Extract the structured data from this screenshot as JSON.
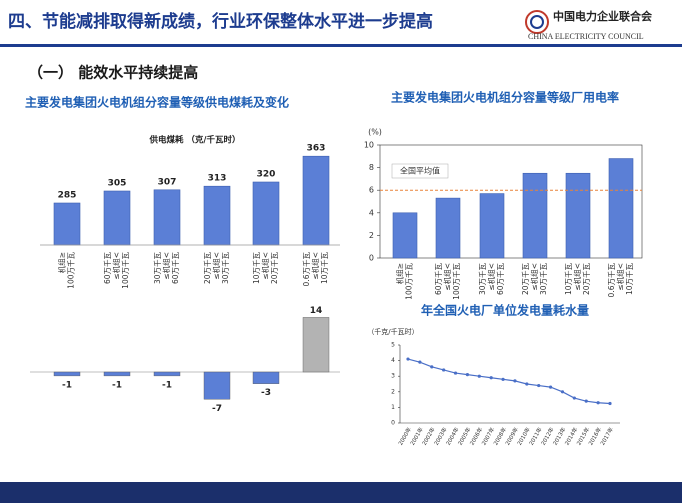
{
  "header": {
    "title": "四、节能减排取得新成绩，行业环保整体水平进一步提高",
    "org": "中国电力企业联合会",
    "org_en": "CHINA ELECTRICITY COUNCIL"
  },
  "section": "（一） 能效水平持续提高",
  "chart_data": [
    {
      "type": "bar",
      "title": "主要发电集团火电机组分容量等级供电煤耗及变化",
      "subtitle": "供电煤耗 （克/千瓦时）",
      "categories": [
        [
          "机组≥",
          "100万千瓦"
        ],
        [
          "60万千瓦",
          "≤机组<",
          "100万千瓦"
        ],
        [
          "30万千瓦",
          "≤机组<",
          "60万千瓦"
        ],
        [
          "20万千瓦",
          "≤机组<",
          "30万千瓦"
        ],
        [
          "10万千瓦",
          "≤机组<",
          "20万千瓦"
        ],
        [
          "0.6万千瓦",
          "≤机组<",
          "10万千瓦"
        ]
      ],
      "values": [
        285,
        305,
        307,
        313,
        320,
        363
      ],
      "color": "#5b7fd6",
      "ylim": [
        215,
        400
      ]
    },
    {
      "type": "bar",
      "values": [
        -1,
        -1,
        -1,
        -7,
        -3,
        14
      ],
      "colors": [
        "#5b7fd6",
        "#5b7fd6",
        "#5b7fd6",
        "#5b7fd6",
        "#5b7fd6",
        "#b3b3b3"
      ],
      "ylim": [
        -8,
        15
      ]
    },
    {
      "type": "bar",
      "title": "主要发电集团火电机组分容量等级厂用电率",
      "ylabel": "(%)",
      "categories": [
        [
          "机组≥",
          "100万千瓦"
        ],
        [
          "60万千瓦",
          "≤机组<",
          "100万千瓦"
        ],
        [
          "30万千瓦",
          "≤机组<",
          "60万千瓦"
        ],
        [
          "20万千瓦",
          "≤机组<",
          "30万千瓦"
        ],
        [
          "10万千瓦",
          "≤机组<",
          "20万千瓦"
        ],
        [
          "0.6万千瓦",
          "≤机组<",
          "10万千瓦"
        ]
      ],
      "values": [
        4.0,
        5.3,
        5.7,
        7.5,
        7.5,
        8.8
      ],
      "color": "#5b7fd6",
      "ylim": [
        0,
        10
      ],
      "yticks": [
        0,
        2,
        4,
        6,
        8,
        10
      ],
      "reference": {
        "label": "全国平均值",
        "value": 6,
        "color": "#e8843a"
      }
    },
    {
      "type": "line",
      "title": "年全国火电厂单位发电量耗水量",
      "ylabel": "（千克/千瓦时）",
      "categories": [
        "2000年",
        "2001年",
        "2002年",
        "2003年",
        "2004年",
        "2005年",
        "2006年",
        "2007年",
        "2008年",
        "2009年",
        "2010年",
        "2011年",
        "2012年",
        "2013年",
        "2014年",
        "2015年",
        "2016年",
        "2017年"
      ],
      "values": [
        4.1,
        3.9,
        3.6,
        3.4,
        3.2,
        3.1,
        3.0,
        2.9,
        2.8,
        2.7,
        2.5,
        2.4,
        2.3,
        2.0,
        1.6,
        1.4,
        1.3,
        1.25
      ],
      "color": "#4a6fc7",
      "ylim": [
        0,
        5
      ],
      "yticks": [
        0,
        1,
        2,
        3,
        4,
        5
      ]
    }
  ]
}
